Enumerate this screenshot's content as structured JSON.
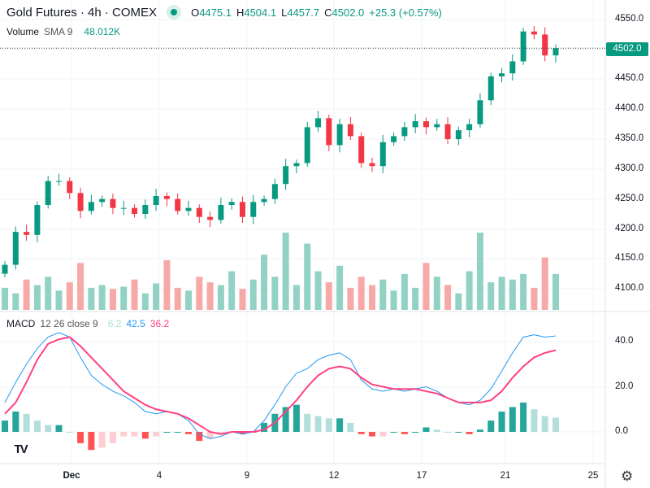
{
  "header": {
    "symbol_title": "Gold Futures · 4h · COMEX",
    "o_label": "O",
    "open": "4475.1",
    "h_label": "H",
    "high": "4504.1",
    "l_label": "L",
    "low": "4457.7",
    "c_label": "C",
    "close": "4502.0",
    "change": "+25.3 (+0.57%)"
  },
  "volume_legend": {
    "name": "Volume",
    "params": "SMA 9",
    "value": "48.012K"
  },
  "macd_legend": {
    "name": "MACD",
    "params": "12 26 close 9",
    "hist": "6.2",
    "macd": "42.5",
    "signal": "36.2"
  },
  "price_label": "4502.0",
  "colors": {
    "up": "#089981",
    "down": "#f23645",
    "macd": "#2196f3",
    "signal": "#ff4081"
  },
  "price_axis": [
    "4550.0",
    "4500.0",
    "4450.0",
    "4400.0",
    "4350.0",
    "4300.0",
    "4250.0",
    "4200.0",
    "4150.0",
    "4100.0"
  ],
  "macd_axis": [
    "40.0",
    "20.0",
    "0.0"
  ],
  "time_axis": [
    "Dec",
    "4",
    "9",
    "12",
    "17",
    "21",
    "25"
  ],
  "chart_data": {
    "type": "candlestick",
    "price_range": [
      4050,
      4560
    ],
    "closes": [
      4140,
      4195,
      4190,
      4240,
      4280,
      4280,
      4260,
      4230,
      4245,
      4250,
      4235,
      4235,
      4225,
      4240,
      4255,
      4250,
      4230,
      4235,
      4220,
      4215,
      4240,
      4245,
      4220,
      4245,
      4250,
      4275,
      4305,
      4310,
      4370,
      4385,
      4340,
      4375,
      4355,
      4310,
      4305,
      4345,
      4355,
      4370,
      4380,
      4370,
      4375,
      4350,
      4365,
      4375,
      4415,
      4455,
      4460,
      4480,
      4530,
      4525,
      4490,
      4502
    ],
    "volume_k": [
      40,
      30,
      55,
      45,
      60,
      35,
      50,
      85,
      40,
      45,
      38,
      42,
      55,
      30,
      48,
      90,
      40,
      35,
      60,
      50,
      45,
      70,
      38,
      55,
      100,
      60,
      140,
      45,
      120,
      70,
      50,
      80,
      40,
      60,
      45,
      55,
      35,
      65,
      40,
      85,
      60,
      45,
      30,
      70,
      140,
      50,
      60,
      55,
      65,
      40,
      95,
      65
    ],
    "macd": [
      13,
      22,
      30,
      37,
      42,
      44,
      42,
      33,
      25,
      21,
      18,
      16,
      13,
      9,
      8,
      9,
      8,
      5,
      -1,
      -3,
      -2,
      0,
      -1,
      0,
      5,
      12,
      20,
      26,
      28,
      32,
      34,
      35,
      32,
      23,
      19,
      18,
      19,
      18,
      19,
      20,
      18,
      15,
      13,
      12,
      14,
      19,
      27,
      35,
      42,
      43,
      42,
      42.5
    ],
    "signal": [
      8,
      13,
      22,
      32,
      39,
      41,
      42,
      38,
      33,
      28,
      23,
      18,
      15,
      12,
      10,
      9,
      8,
      6,
      3,
      0,
      -1,
      0,
      0,
      0,
      1,
      4,
      9,
      14,
      20,
      25,
      28,
      29,
      28,
      24,
      21,
      20,
      19,
      19,
      19,
      18,
      17,
      15,
      13,
      13,
      13,
      14,
      18,
      24,
      29,
      33,
      35,
      36.2
    ],
    "macd_range": [
      -12,
      50
    ]
  }
}
